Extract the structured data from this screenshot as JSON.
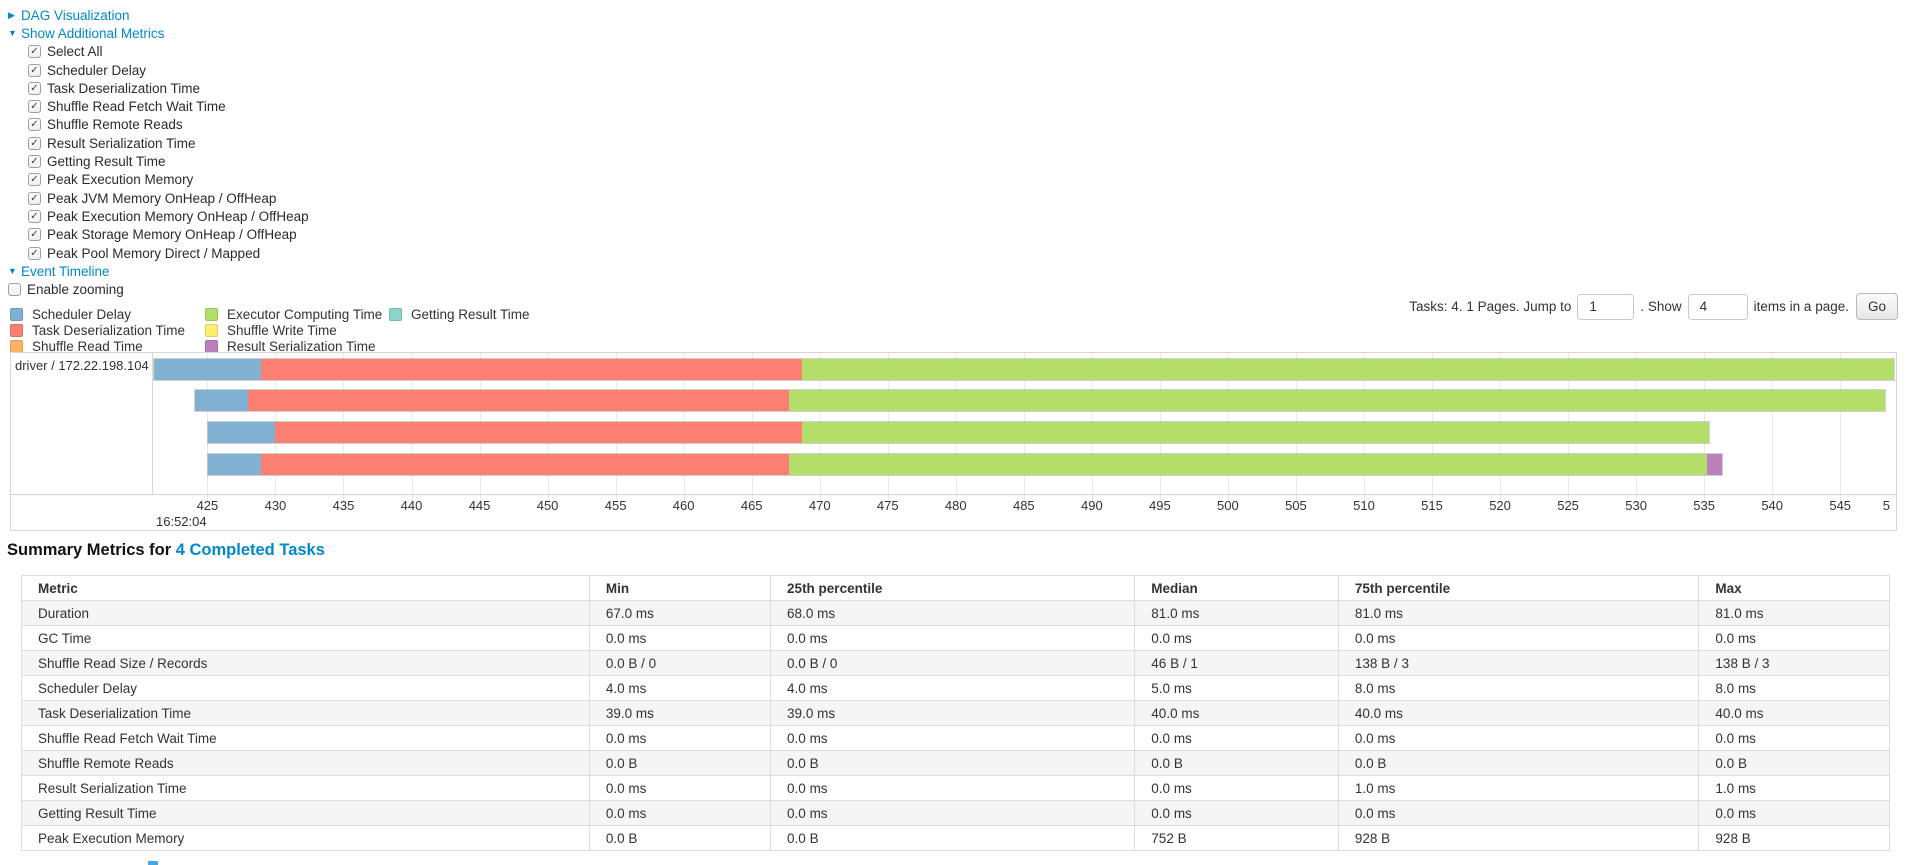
{
  "controls": {
    "dag_toggle": "DAG Visualization",
    "metrics_toggle": "Show Additional Metrics",
    "timeline_toggle": "Event Timeline",
    "metrics_checkboxes": [
      {
        "label": "Select All",
        "checked": true
      },
      {
        "label": "Scheduler Delay",
        "checked": true
      },
      {
        "label": "Task Deserialization Time",
        "checked": true
      },
      {
        "label": "Shuffle Read Fetch Wait Time",
        "checked": true
      },
      {
        "label": "Shuffle Remote Reads",
        "checked": true
      },
      {
        "label": "Result Serialization Time",
        "checked": true
      },
      {
        "label": "Getting Result Time",
        "checked": true
      },
      {
        "label": "Peak Execution Memory",
        "checked": true
      },
      {
        "label": "Peak JVM Memory OnHeap / OffHeap",
        "checked": true
      },
      {
        "label": "Peak Execution Memory OnHeap / OffHeap",
        "checked": true
      },
      {
        "label": "Peak Storage Memory OnHeap / OffHeap",
        "checked": true
      },
      {
        "label": "Peak Pool Memory Direct / Mapped",
        "checked": true
      }
    ],
    "enable_zooming": {
      "label": "Enable zooming",
      "checked": false
    }
  },
  "legend": {
    "columns": [
      [
        {
          "label": "Scheduler Delay",
          "color": "#80B1D3"
        },
        {
          "label": "Task Deserialization Time",
          "color": "#FB8072"
        },
        {
          "label": "Shuffle Read Time",
          "color": "#FDB462"
        }
      ],
      [
        {
          "label": "Executor Computing Time",
          "color": "#B3DE69"
        },
        {
          "label": "Shuffle Write Time",
          "color": "#FFED6F"
        },
        {
          "label": "Result Serialization Time",
          "color": "#BC80BD"
        }
      ],
      [
        {
          "label": "Getting Result Time",
          "color": "#8DD3C7"
        }
      ]
    ],
    "column_offsets": [
      0,
      195,
      379
    ]
  },
  "pagination": {
    "prefix": "Tasks: 4. 1 Pages. Jump to",
    "jump_value": "1",
    "mid": ". Show",
    "show_value": "4",
    "suffix": "items in a page.",
    "go_label": "Go"
  },
  "chart_data": {
    "type": "timeline-bar",
    "title": "Event Timeline",
    "group_label": "driver / 172.22.198.104",
    "axis": {
      "unit": "ms",
      "domain_min": 421.0,
      "domain_max": 549.1,
      "ticks": [
        425,
        430,
        435,
        440,
        445,
        450,
        455,
        460,
        465,
        470,
        475,
        480,
        485,
        490,
        495,
        500,
        505,
        510,
        515,
        520,
        525,
        530,
        535,
        540,
        545
      ],
      "clipped_last_tick_label": "5",
      "start_time_label": "16:52:04"
    },
    "colors": {
      "scheduler_delay": "#80B1D3",
      "task_deserialization": "#FB8072",
      "shuffle_read": "#FDB462",
      "executor_computing": "#B3DE69",
      "shuffle_write": "#FFED6F",
      "result_serialization": "#BC80BD",
      "getting_result": "#8DD3C7"
    },
    "row_layout": {
      "tops": [
        5,
        36,
        68,
        100
      ],
      "height": 23
    },
    "tasks": [
      {
        "segments": [
          {
            "name": "scheduler_delay",
            "start": 421.0,
            "end": 428.9
          },
          {
            "name": "task_deserialization",
            "start": 428.9,
            "end": 468.7
          },
          {
            "name": "executor_computing",
            "start": 468.7,
            "end": 549.0
          }
        ]
      },
      {
        "segments": [
          {
            "name": "scheduler_delay",
            "start": 424.0,
            "end": 427.9
          },
          {
            "name": "task_deserialization",
            "start": 427.9,
            "end": 467.7
          },
          {
            "name": "executor_computing",
            "start": 467.7,
            "end": 548.4
          }
        ]
      },
      {
        "segments": [
          {
            "name": "scheduler_delay",
            "start": 425.0,
            "end": 429.9
          },
          {
            "name": "task_deserialization",
            "start": 429.9,
            "end": 468.7
          },
          {
            "name": "executor_computing",
            "start": 468.7,
            "end": 535.4
          }
        ]
      },
      {
        "segments": [
          {
            "name": "scheduler_delay",
            "start": 425.0,
            "end": 428.9
          },
          {
            "name": "task_deserialization",
            "start": 428.9,
            "end": 467.7
          },
          {
            "name": "executor_computing",
            "start": 467.7,
            "end": 535.3
          },
          {
            "name": "result_serialization",
            "start": 535.3,
            "end": 536.4
          }
        ]
      }
    ]
  },
  "summary": {
    "heading_prefix": "Summary Metrics for ",
    "heading_link": "4 Completed Tasks",
    "columns": [
      "Metric",
      "Min",
      "25th percentile",
      "Median",
      "75th percentile",
      "Max"
    ],
    "column_widths": [
      "30.4%",
      "9.7%",
      "19.5%",
      "10.9%",
      "19.3%",
      "10.2%"
    ],
    "rows": [
      {
        "metric": "Duration",
        "values": [
          "67.0 ms",
          "68.0 ms",
          "81.0 ms",
          "81.0 ms",
          "81.0 ms"
        ]
      },
      {
        "metric": "GC Time",
        "values": [
          "0.0 ms",
          "0.0 ms",
          "0.0 ms",
          "0.0 ms",
          "0.0 ms"
        ]
      },
      {
        "metric": "Shuffle Read Size / Records",
        "values": [
          "0.0 B / 0",
          "0.0 B / 0",
          "46 B / 1",
          "138 B / 3",
          "138 B / 3"
        ]
      },
      {
        "metric": "Scheduler Delay",
        "values": [
          "4.0 ms",
          "4.0 ms",
          "5.0 ms",
          "8.0 ms",
          "8.0 ms"
        ]
      },
      {
        "metric": "Task Deserialization Time",
        "values": [
          "39.0 ms",
          "39.0 ms",
          "40.0 ms",
          "40.0 ms",
          "40.0 ms"
        ]
      },
      {
        "metric": "Shuffle Read Fetch Wait Time",
        "values": [
          "0.0 ms",
          "0.0 ms",
          "0.0 ms",
          "0.0 ms",
          "0.0 ms"
        ]
      },
      {
        "metric": "Shuffle Remote Reads",
        "values": [
          "0.0 B",
          "0.0 B",
          "0.0 B",
          "0.0 B",
          "0.0 B"
        ]
      },
      {
        "metric": "Result Serialization Time",
        "values": [
          "0.0 ms",
          "0.0 ms",
          "0.0 ms",
          "1.0 ms",
          "1.0 ms"
        ]
      },
      {
        "metric": "Getting Result Time",
        "values": [
          "0.0 ms",
          "0.0 ms",
          "0.0 ms",
          "0.0 ms",
          "0.0 ms"
        ]
      },
      {
        "metric": "Peak Execution Memory",
        "values": [
          "0.0 B",
          "0.0 B",
          "752 B",
          "928 B",
          "928 B"
        ]
      }
    ]
  }
}
